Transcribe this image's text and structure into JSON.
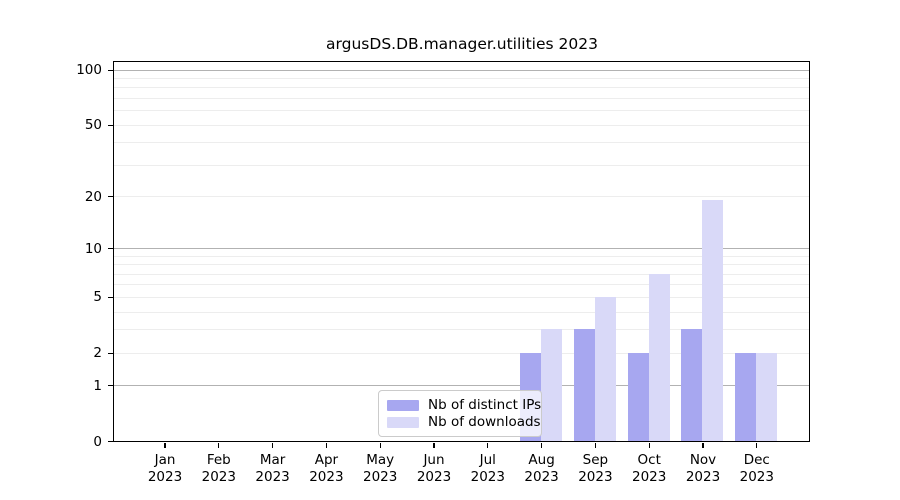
{
  "chart_data": {
    "type": "bar",
    "title": "argusDS.DB.manager.utilities 2023",
    "months": [
      "Jan",
      "Feb",
      "Mar",
      "Apr",
      "May",
      "Jun",
      "Jul",
      "Aug",
      "Sep",
      "Oct",
      "Nov",
      "Dec"
    ],
    "year_label": "2023",
    "categories": [
      "Jan 2023",
      "Feb 2023",
      "Mar 2023",
      "Apr 2023",
      "May 2023",
      "Jun 2023",
      "Jul 2023",
      "Aug 2023",
      "Sep 2023",
      "Oct 2023",
      "Nov 2023",
      "Dec 2023"
    ],
    "series": [
      {
        "name": "Nb of distinct IPs",
        "color": "#a7a7f0",
        "values": [
          0,
          0,
          0,
          0,
          0,
          0,
          0,
          2,
          3,
          2,
          3,
          2
        ]
      },
      {
        "name": "Nb of downloads",
        "color": "#d9d9f8",
        "values": [
          0,
          0,
          0,
          0,
          0,
          0,
          0,
          3,
          5,
          7,
          19,
          2
        ]
      }
    ],
    "yscale": "log1p",
    "ylim": [
      0,
      110
    ],
    "yticks": [
      0,
      1,
      2,
      5,
      10,
      20,
      50,
      100
    ],
    "major_gridlines": [
      1,
      10,
      100
    ],
    "minor_gridlines": [
      2,
      3,
      4,
      5,
      6,
      7,
      8,
      9,
      20,
      30,
      40,
      50,
      60,
      70,
      80,
      90
    ],
    "grid": "horizontal",
    "legend_position": "lower-center-inside",
    "bars_grouping": "pair-centered-on-tick"
  },
  "colors": {
    "major_grid": "#b2b2b2",
    "minor_grid": "#ededed",
    "spine": "#000000",
    "legend_border": "#cbcbcb"
  }
}
